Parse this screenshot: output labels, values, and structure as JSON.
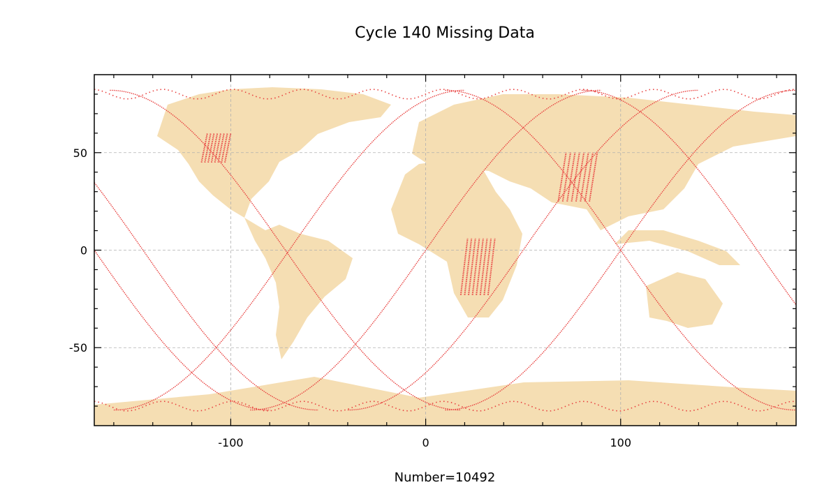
{
  "chart_data": {
    "type": "scatter",
    "title": "Cycle 140 Missing Data",
    "xlabel": "Number=10492",
    "ylabel": "",
    "xlim": [
      -170,
      190
    ],
    "ylim": [
      -90,
      90
    ],
    "x_ticks": [
      -100,
      0,
      100
    ],
    "x_tick_labels": [
      "-100",
      "0",
      "100"
    ],
    "y_ticks": [
      -50,
      0,
      50
    ],
    "y_tick_labels": [
      "-50",
      "0",
      "50"
    ],
    "grid": true,
    "background": "world map (land)",
    "colors": {
      "land": "#f5deb3",
      "points": "#e8413f",
      "grid": "#b0b0b0"
    },
    "series": [
      {
        "tracks": [
          {
            "lon_eq": -170,
            "dir": "desc"
          },
          {
            "lon_eq": -70,
            "dir": "asc"
          },
          {
            "lon_eq": 0,
            "dir": "asc"
          },
          {
            "lon_eq": 50,
            "dir": "asc"
          },
          {
            "lon_eq": 100,
            "dir": "asc"
          },
          {
            "lon_eq": -145,
            "dir": "desc"
          },
          {
            "lon_eq": -72,
            "dir": "desc"
          },
          {
            "lon_eq": 100,
            "dir": "desc"
          },
          {
            "lon_eq": 170,
            "dir": "desc"
          }
        ],
        "clusters": [
          {
            "lon": [
              -115,
              -103
            ],
            "lat": [
              45,
              60
            ]
          },
          {
            "lon": [
              68,
              84
            ],
            "lat": [
              25,
              50
            ]
          },
          {
            "lon": [
              18,
              32
            ],
            "lat": [
              -23,
              6
            ]
          }
        ]
      }
    ]
  }
}
